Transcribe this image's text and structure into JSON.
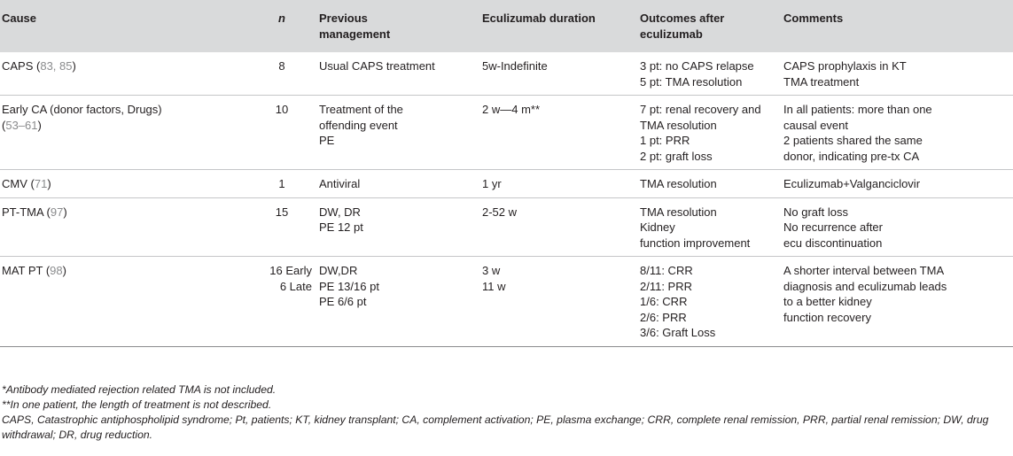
{
  "table": {
    "headers": {
      "cause": "Cause",
      "n": "n",
      "previous": [
        "Previous",
        "management"
      ],
      "duration": "Eculizumab duration",
      "outcomes": [
        "Outcomes after",
        "eculizumab"
      ],
      "comments": "Comments"
    },
    "rows": [
      {
        "cause_text": "CAPS (",
        "cause_refs": "83, 85",
        "cause_close": ")",
        "n": [
          "8"
        ],
        "previous": [
          "Usual CAPS treatment"
        ],
        "duration": [
          "5w-Indefinite"
        ],
        "outcomes": [
          "3 pt: no CAPS relapse",
          "5 pt: TMA resolution"
        ],
        "comments": [
          "CAPS prophylaxis in KT",
          "TMA treatment"
        ]
      },
      {
        "cause_text": "Early CA (donor factors, Drugs)",
        "cause_refs": "53–61",
        "cause_close": ")",
        "n": [
          "10"
        ],
        "previous": [
          "Treatment of the",
          "offending event",
          "PE"
        ],
        "duration": [
          "2 w—4 m**"
        ],
        "outcomes": [
          "7 pt: renal recovery and",
          "TMA resolution",
          "1 pt: PRR",
          "2 pt: graft loss"
        ],
        "comments": [
          "In all patients: more than one",
          "causal event",
          "2 patients shared the same",
          "donor, indicating pre-tx CA"
        ]
      },
      {
        "cause_text": "CMV (",
        "cause_refs": "71",
        "cause_close": ")",
        "n": [
          "1"
        ],
        "previous": [
          "Antiviral"
        ],
        "duration": [
          "1 yr"
        ],
        "outcomes": [
          "TMA resolution"
        ],
        "comments": [
          "Eculizumab+Valganciclovir"
        ]
      },
      {
        "cause_text": "PT-TMA (",
        "cause_refs": "97",
        "cause_close": ")",
        "n": [
          "15"
        ],
        "previous": [
          "DW, DR",
          "PE 12 pt"
        ],
        "duration": [
          "2-52 w"
        ],
        "outcomes": [
          "TMA resolution",
          "Kidney",
          "function improvement"
        ],
        "comments": [
          "No graft loss",
          "No recurrence after",
          "ecu discontinuation"
        ]
      },
      {
        "cause_text": "MAT PT (",
        "cause_refs": "98",
        "cause_close": ")",
        "n": [
          "16 Early",
          "6 Late"
        ],
        "previous": [
          "DW,DR",
          "PE 13/16 pt",
          "PE 6/6 pt"
        ],
        "duration": [
          "3 w",
          "11 w"
        ],
        "outcomes": [
          "8/11: CRR",
          "2/11: PRR",
          "1/6: CRR",
          "2/6: PRR",
          "3/6: Graft Loss"
        ],
        "comments": [
          "A shorter interval between TMA",
          "diagnosis and eculizumab leads",
          "to a better kidney",
          "function recovery"
        ]
      }
    ]
  },
  "footnotes": {
    "note1": "*Antibody mediated rejection related TMA is not included.",
    "note2": "**In one patient, the length of treatment is not described.",
    "abbreviations": "CAPS, Catastrophic antiphospholipid syndrome; Pt, patients; KT, kidney transplant; CA, complement activation; PE, plasma exchange; CRR, complete renal remission, PRR, partial renal remission; DW, drug withdrawal; DR, drug reduction."
  }
}
